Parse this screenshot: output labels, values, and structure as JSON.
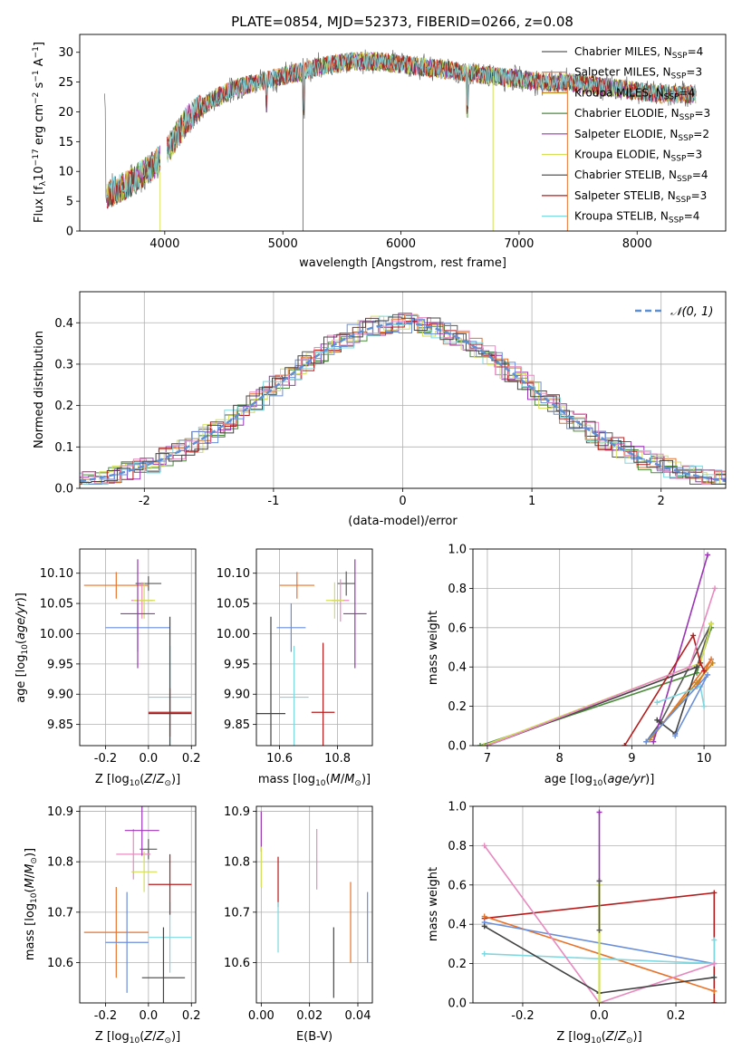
{
  "colors": {
    "Chabrier MILES": "#5a5a5a",
    "Salpeter MILES": "#e8732a",
    "Kroupa MILES": "#c8861a",
    "Chabrier ELODIE": "#4a8c3a",
    "Salpeter ELODIE": "#9b35b5",
    "Kroupa ELODIE": "#d4e157",
    "Chabrier STELIB": "#444444",
    "Salpeter STELIB": "#b71c1c",
    "Kroupa STELIB": "#7fd8e0",
    "gauss": "#5b8fd6",
    "blue": "#6a8fdb",
    "pink": "#e88ac0",
    "gray2": "#707070"
  },
  "chart_data": [
    {
      "id": "spectrum",
      "type": "line",
      "title": "PLATE=0854, MJD=52373, FIBERID=0266, z=0.08",
      "xlabel": "wavelength [Angstrom, rest frame]",
      "ylabel": "Flux [f_λ10^-17 erg cm^-2 s^-1 A^-1]",
      "xlim": [
        3280,
        8750
      ],
      "ylim": [
        0,
        33
      ],
      "xticks": [
        4000,
        5000,
        6000,
        7000,
        8000
      ],
      "yticks": [
        0,
        5,
        10,
        15,
        20,
        25,
        30
      ],
      "legend": [
        {
          "model": "Chabrier MILES",
          "nssp": "4"
        },
        {
          "model": "Salpeter MILES",
          "nssp": "3"
        },
        {
          "model": "Kroupa MILES",
          "nssp": "4"
        },
        {
          "model": "Chabrier ELODIE",
          "nssp": "3"
        },
        {
          "model": "Salpeter ELODIE",
          "nssp": "2"
        },
        {
          "model": "Kroupa ELODIE",
          "nssp": "3"
        },
        {
          "model": "Chabrier STELIB",
          "nssp": "4"
        },
        {
          "model": "Salpeter STELIB",
          "nssp": "3"
        },
        {
          "model": "Kroupa STELIB",
          "nssp": "4"
        }
      ],
      "legend_placement": "top-right",
      "continuum": [
        [
          3500,
          6
        ],
        [
          3700,
          8
        ],
        [
          3900,
          11
        ],
        [
          4000,
          13
        ],
        [
          4200,
          19
        ],
        [
          4400,
          22
        ],
        [
          4600,
          24
        ],
        [
          4800,
          25
        ],
        [
          5000,
          26
        ],
        [
          5200,
          27
        ],
        [
          5400,
          28
        ],
        [
          5600,
          28.5
        ],
        [
          5800,
          28.5
        ],
        [
          6000,
          28
        ],
        [
          6200,
          27.5
        ],
        [
          6400,
          27
        ],
        [
          6600,
          26.5
        ],
        [
          6800,
          26
        ],
        [
          7000,
          25.5
        ],
        [
          7200,
          25
        ],
        [
          7400,
          25
        ],
        [
          7600,
          24.5
        ],
        [
          7800,
          24
        ],
        [
          8000,
          23.5
        ],
        [
          8200,
          23
        ],
        [
          8400,
          23
        ],
        [
          8500,
          23
        ]
      ]
    },
    {
      "id": "residuals",
      "type": "line",
      "xlabel": "(data-model)/error",
      "ylabel": "Normed distribution",
      "xlim": [
        -2.5,
        2.5
      ],
      "ylim": [
        0,
        0.475
      ],
      "xticks": [
        -2,
        -1,
        0,
        1,
        2
      ],
      "yticks": [
        0.0,
        0.1,
        0.2,
        0.3,
        0.4
      ],
      "legend": "𝒩(0, 1)",
      "legend_placement": "top-right",
      "grid": true
    },
    {
      "id": "age_vs_Z",
      "type": "scatter",
      "xlabel": "Z [log10(Z/Z⊙)]",
      "ylabel": "age  [log10(age/yr)]",
      "xlim": [
        -0.32,
        0.22
      ],
      "ylim": [
        9.815,
        10.14
      ],
      "xticks": [
        -0.2,
        0.0,
        0.2
      ],
      "yticks": [
        9.85,
        9.9,
        9.95,
        10.0,
        10.05,
        10.1
      ],
      "points": [
        {
          "x": 0.0,
          "y": 10.083,
          "xerr": 0.06,
          "yerr": 0.012,
          "color": "#5a5a5a"
        },
        {
          "x": -0.15,
          "y": 10.08,
          "xerr": 0.15,
          "yerr": 0.022,
          "color": "#e8732a"
        },
        {
          "x": -0.05,
          "y": 10.01,
          "xerr": 0.15,
          "yerr": 0.04,
          "color": "#6a8fdb"
        },
        {
          "x": -0.03,
          "y": 10.055,
          "xerr": 0.05,
          "yerr": 0.03,
          "color": "#e88ac0"
        },
        {
          "x": -0.02,
          "y": 10.055,
          "xerr": 0.05,
          "yerr": 0.03,
          "color": "#d4e157"
        },
        {
          "x": -0.05,
          "y": 10.033,
          "xerr": 0.08,
          "yerr": 0.09,
          "color": "#9b35b5"
        },
        {
          "x": 0.1,
          "y": 9.895,
          "xerr": 0.1,
          "yerr": 0.085,
          "color": "#7fd8e0"
        },
        {
          "x": 0.1,
          "y": 9.87,
          "xerr": 0.1,
          "yerr": 0.04,
          "color": "#b71c1c"
        },
        {
          "x": 0.1,
          "y": 9.868,
          "xerr": 0.1,
          "yerr": 0.16,
          "color": "#444444"
        }
      ],
      "grid": true
    },
    {
      "id": "age_vs_mass",
      "type": "scatter",
      "xlabel": "mass [log10(M/M⊙)]",
      "ylabel": "",
      "xlim": [
        10.52,
        10.92
      ],
      "ylim": [
        9.815,
        10.14
      ],
      "xticks": [
        10.6,
        10.8
      ],
      "yticks": [
        9.85,
        9.9,
        9.95,
        10.0,
        10.05,
        10.1
      ],
      "points": [
        {
          "x": 10.83,
          "y": 10.083,
          "xerr": 0.03,
          "yerr": 0.02,
          "color": "#5a5a5a"
        },
        {
          "x": 10.66,
          "y": 10.08,
          "xerr": 0.06,
          "yerr": 0.022,
          "color": "#e8732a"
        },
        {
          "x": 10.64,
          "y": 10.01,
          "xerr": 0.05,
          "yerr": 0.04,
          "color": "#6a8fdb"
        },
        {
          "x": 10.81,
          "y": 10.055,
          "xerr": 0.03,
          "yerr": 0.035,
          "color": "#e88ac0"
        },
        {
          "x": 10.79,
          "y": 10.055,
          "xerr": 0.03,
          "yerr": 0.03,
          "color": "#d4e157"
        },
        {
          "x": 10.86,
          "y": 10.033,
          "xerr": 0.04,
          "yerr": 0.09,
          "color": "#9b35b5"
        },
        {
          "x": 10.65,
          "y": 9.895,
          "xerr": 0.05,
          "yerr": 0.085,
          "color": "#7fd8e0"
        },
        {
          "x": 10.75,
          "y": 9.87,
          "xerr": 0.04,
          "yerr": 0.115,
          "color": "#b71c1c"
        },
        {
          "x": 10.57,
          "y": 9.868,
          "xerr": 0.05,
          "yerr": 0.16,
          "color": "#444444"
        }
      ],
      "grid": true
    },
    {
      "id": "weight_vs_age",
      "type": "line",
      "xlabel": "age  [log10(age/yr)]",
      "ylabel": "mass weight",
      "xlim": [
        6.8,
        10.3
      ],
      "ylim": [
        0,
        1.0
      ],
      "xticks": [
        7,
        8,
        9,
        10
      ],
      "yticks": [
        0.0,
        0.2,
        0.4,
        0.6,
        0.8,
        1.0
      ],
      "series": [
        {
          "color": "#5a5a5a",
          "points": [
            [
              9.2,
              0.02
            ],
            [
              9.4,
              0.12
            ],
            [
              10.1,
              0.62
            ],
            [
              9.9,
              0.4
            ]
          ]
        },
        {
          "color": "#e8732a",
          "points": [
            [
              9.3,
              0.05
            ],
            [
              10.1,
              0.44
            ],
            [
              9.9,
              0.3
            ]
          ]
        },
        {
          "color": "#c8861a",
          "points": [
            [
              9.25,
              0.03
            ],
            [
              10.12,
              0.42
            ],
            [
              9.9,
              0.32
            ]
          ]
        },
        {
          "color": "#4a8c3a",
          "points": [
            [
              6.9,
              0.0
            ],
            [
              9.9,
              0.37
            ],
            [
              10.1,
              0.6
            ]
          ]
        },
        {
          "color": "#9b35b5",
          "points": [
            [
              9.3,
              0.02
            ],
            [
              10.05,
              0.97
            ]
          ]
        },
        {
          "color": "#d4e157",
          "points": [
            [
              6.95,
              0.0
            ],
            [
              9.95,
              0.42
            ],
            [
              10.1,
              0.62
            ]
          ]
        },
        {
          "color": "#444444",
          "points": [
            [
              7.0,
              0.0
            ],
            [
              9.9,
              0.4
            ],
            [
              9.6,
              0.06
            ],
            [
              9.35,
              0.13
            ]
          ]
        },
        {
          "color": "#b71c1c",
          "points": [
            [
              8.9,
              0.0
            ],
            [
              9.85,
              0.56
            ],
            [
              9.95,
              0.42
            ],
            [
              10.0,
              0.38
            ]
          ]
        },
        {
          "color": "#7fd8e0",
          "points": [
            [
              9.35,
              0.22
            ],
            [
              9.95,
              0.3
            ],
            [
              10.0,
              0.2
            ]
          ]
        },
        {
          "color": "#6a8fdb",
          "points": [
            [
              9.2,
              0.02
            ],
            [
              10.05,
              0.36
            ],
            [
              9.6,
              0.05
            ]
          ]
        },
        {
          "color": "#e88ac0",
          "points": [
            [
              7.0,
              0.0
            ],
            [
              9.8,
              0.4
            ],
            [
              10.15,
              0.8
            ]
          ]
        }
      ],
      "grid": true
    },
    {
      "id": "mass_vs_Z",
      "type": "scatter",
      "xlabel": "Z [log10(Z/Z⊙)]",
      "ylabel": "mass [log10(M/M⊙)]",
      "xlim": [
        -0.32,
        0.22
      ],
      "ylim": [
        10.52,
        10.91
      ],
      "xticks": [
        -0.2,
        0.0,
        0.2
      ],
      "yticks": [
        10.6,
        10.7,
        10.8,
        10.9
      ],
      "points": [
        {
          "x": 0.0,
          "y": 10.825,
          "xerr": 0.04,
          "yerr": 0.02,
          "color": "#5a5a5a"
        },
        {
          "x": -0.15,
          "y": 10.66,
          "xerr": 0.15,
          "yerr": 0.09,
          "color": "#e8732a"
        },
        {
          "x": -0.1,
          "y": 10.64,
          "xerr": 0.1,
          "yerr": 0.1,
          "color": "#6a8fdb"
        },
        {
          "x": -0.07,
          "y": 10.815,
          "xerr": 0.08,
          "yerr": 0.05,
          "color": "#e88ac0"
        },
        {
          "x": -0.02,
          "y": 10.78,
          "xerr": 0.06,
          "yerr": 0.04,
          "color": "#d4e157"
        },
        {
          "x": -0.03,
          "y": 10.862,
          "xerr": 0.08,
          "yerr": 0.05,
          "color": "#9b35b5"
        },
        {
          "x": 0.1,
          "y": 10.65,
          "xerr": 0.1,
          "yerr": 0.07,
          "color": "#7fd8e0"
        },
        {
          "x": 0.1,
          "y": 10.755,
          "xerr": 0.1,
          "yerr": 0.06,
          "color": "#b71c1c"
        },
        {
          "x": 0.07,
          "y": 10.57,
          "xerr": 0.1,
          "yerr": 0.1,
          "color": "#444444"
        }
      ],
      "grid": true
    },
    {
      "id": "mass_vs_ebv",
      "type": "scatter",
      "xlabel": "E(B-V)",
      "ylabel": "",
      "xlim": [
        -0.002,
        0.046
      ],
      "ylim": [
        10.52,
        10.91
      ],
      "xticks": [
        0.0,
        0.02,
        0.04
      ],
      "yticks": [
        10.6,
        10.7,
        10.8,
        10.9
      ],
      "points": [
        {
          "x": 0.0,
          "y": 10.86,
          "yerr": 0.04,
          "color": "#9b35b5"
        },
        {
          "x": 0.0,
          "y": 10.79,
          "yerr": 0.04,
          "color": "#d4e157"
        },
        {
          "x": 0.007,
          "y": 10.76,
          "yerr": 0.05,
          "color": "#b71c1c"
        },
        {
          "x": 0.007,
          "y": 10.67,
          "yerr": 0.05,
          "color": "#7fd8e0"
        },
        {
          "x": 0.023,
          "y": 10.805,
          "yerr": 0.06,
          "color": "#e88ac0"
        },
        {
          "x": 0.03,
          "y": 10.6,
          "yerr": 0.07,
          "color": "#444444"
        },
        {
          "x": 0.037,
          "y": 10.68,
          "yerr": 0.08,
          "color": "#e8732a"
        },
        {
          "x": 0.044,
          "y": 10.67,
          "yerr": 0.07,
          "color": "#6a8fdb"
        }
      ],
      "grid": true
    },
    {
      "id": "weight_vs_Z",
      "type": "line",
      "xlabel": "Z [log10(Z/Z⊙)]",
      "ylabel": "mass weight",
      "xlim": [
        -0.33,
        0.33
      ],
      "ylim": [
        0,
        1.0
      ],
      "xticks": [
        -0.2,
        0.0,
        0.2
      ],
      "yticks": [
        0.0,
        0.2,
        0.4,
        0.6,
        0.8,
        1.0
      ],
      "series": [
        {
          "color": "#b71c1c",
          "points": [
            [
              -0.3,
              0.43
            ],
            [
              0.3,
              0.56
            ],
            [
              0.3,
              0.0
            ]
          ]
        },
        {
          "color": "#e8732a",
          "points": [
            [
              -0.3,
              0.44
            ],
            [
              0.3,
              0.06
            ]
          ]
        },
        {
          "color": "#6a8fdb",
          "points": [
            [
              -0.3,
              0.41
            ],
            [
              0.3,
              0.2
            ]
          ]
        },
        {
          "color": "#7fd8e0",
          "points": [
            [
              -0.3,
              0.25
            ],
            [
              0.3,
              0.2
            ],
            [
              0.3,
              0.32
            ]
          ]
        },
        {
          "color": "#e88ac0",
          "points": [
            [
              -0.3,
              0.8
            ],
            [
              0.0,
              0.0
            ],
            [
              0.3,
              0.2
            ]
          ]
        },
        {
          "color": "#444444",
          "points": [
            [
              -0.3,
              0.39
            ],
            [
              0.0,
              0.05
            ],
            [
              0.3,
              0.13
            ]
          ]
        },
        {
          "color": "#9b35b5",
          "points": [
            [
              0.0,
              0.97
            ],
            [
              0.0,
              0.62
            ]
          ]
        },
        {
          "color": "#d4e157",
          "points": [
            [
              0.0,
              0.0
            ],
            [
              0.0,
              0.6
            ]
          ]
        },
        {
          "color": "#5a5a5a",
          "points": [
            [
              0.0,
              0.62
            ],
            [
              0.0,
              0.37
            ]
          ]
        }
      ],
      "grid": true
    }
  ]
}
